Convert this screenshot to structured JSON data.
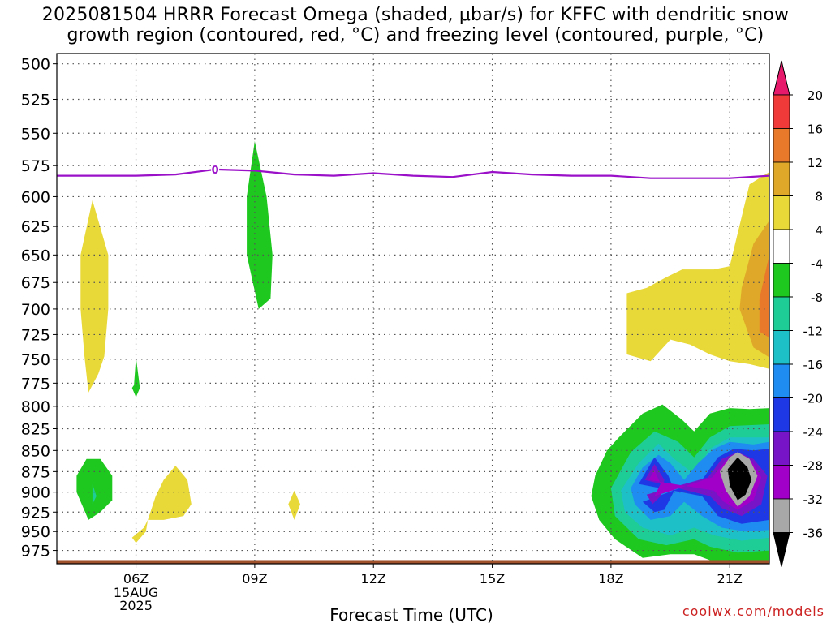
{
  "title": {
    "line1": "2025081504 HRRR Forecast Omega (shaded, μbar/s) for KFFC with dendritic snow",
    "line2": "growth region (contoured, red, °C) and freezing level (contoured, purple, °C)"
  },
  "watermark": "coolwx.com/models",
  "chart_data": {
    "type": "heatmap",
    "xlabel": "Forecast Time (UTC)",
    "x_tick_labels": [
      "06Z",
      "09Z",
      "12Z",
      "15Z",
      "18Z",
      "21Z"
    ],
    "x_tick_hours": [
      6,
      9,
      12,
      15,
      18,
      21
    ],
    "x_date_label": [
      "15AUG",
      "2025"
    ],
    "xlim_hours": [
      4.0,
      22.0
    ],
    "y_tick_labels": [
      "500",
      "525",
      "550",
      "575",
      "600",
      "625",
      "650",
      "675",
      "700",
      "725",
      "750",
      "775",
      "800",
      "825",
      "850",
      "875",
      "900",
      "925",
      "950",
      "975"
    ],
    "ylim_mb": [
      493,
      993
    ],
    "y_scale": "log-pressure",
    "grid": true,
    "colorbar": {
      "labels": [
        "20",
        "16",
        "12",
        "8",
        "4",
        "-4",
        "-8",
        "-12",
        "-16",
        "-20",
        "-24",
        "-28",
        "-32",
        "-36"
      ],
      "colors": [
        "#e6196b",
        "#f03a3a",
        "#e8782a",
        "#e0a828",
        "#e8d838",
        "#ffffff",
        "#1ec81e",
        "#1ecc96",
        "#1ec0c8",
        "#1e8cf0",
        "#1e38e6",
        "#7814c8",
        "#a000c8",
        "#a8a8a8",
        "#000000"
      ]
    },
    "freezing_level": {
      "label": "0",
      "label_hour": 8.0,
      "color": "#9a10c8",
      "hours": [
        4.0,
        6.0,
        7.0,
        8.0,
        9.0,
        10.0,
        11.0,
        12.0,
        13.0,
        14.0,
        15.0,
        16.0,
        17.0,
        18.0,
        19.0,
        20.0,
        21.0,
        22.0
      ],
      "pressure_mb": [
        583,
        583,
        582,
        578,
        579,
        582,
        583,
        581,
        583,
        584,
        580,
        582,
        583,
        583,
        585,
        585,
        585,
        583
      ]
    },
    "omega_regions": [
      {
        "level": "4",
        "color": "#e8d838",
        "hours": [
          4.6,
          4.9,
          5.3,
          5.3,
          5.2,
          5.05,
          4.8,
          4.7,
          4.6
        ],
        "pressure_mb": [
          650,
          603,
          650,
          700,
          747,
          765,
          785,
          747,
          700
        ]
      },
      {
        "level": "-4",
        "color": "#1ec81e",
        "hours": [
          5.95,
          6.0,
          6.1,
          6.0,
          5.9
        ],
        "pressure_mb": [
          777,
          748,
          780,
          790,
          780
        ]
      },
      {
        "level": "-4",
        "color": "#1ec81e",
        "hours": [
          8.8,
          9.0,
          9.3,
          9.45,
          9.4,
          9.1,
          8.8
        ],
        "pressure_mb": [
          600,
          556,
          600,
          650,
          690,
          700,
          650
        ]
      },
      {
        "level": "4",
        "color": "#e8d838",
        "hours": [
          9.85,
          10.0,
          10.15,
          10.0
        ],
        "pressure_mb": [
          915,
          898,
          915,
          935
        ]
      },
      {
        "level": "-4",
        "color": "#1ec81e",
        "hours": [
          4.5,
          4.75,
          5.1,
          5.4,
          5.4,
          5.1,
          4.8,
          4.5
        ],
        "pressure_mb": [
          880,
          860,
          860,
          880,
          910,
          925,
          935,
          900
        ]
      },
      {
        "level": "-8",
        "color": "#1ecc96",
        "hours": [
          4.9,
          5.0,
          4.9
        ],
        "pressure_mb": [
          890,
          905,
          915
        ]
      },
      {
        "level": "4",
        "color": "#e8d838",
        "hours": [
          5.9,
          6.2,
          6.3,
          6.5,
          6.7,
          7.0,
          7.3,
          7.4,
          7.2,
          6.7,
          6.3,
          6.25,
          6.0
        ],
        "pressure_mb": [
          958,
          945,
          935,
          905,
          885,
          868,
          885,
          915,
          930,
          935,
          935,
          950,
          965
        ]
      },
      {
        "level": "4",
        "color": "#e8d838",
        "hours": [
          18.4,
          18.9,
          19.4,
          19.8,
          20.6,
          21.0,
          21.5,
          22.0,
          22.0,
          21.5,
          21.0,
          20.5,
          20.0,
          19.5,
          19.0,
          18.4
        ],
        "pressure_mb": [
          685,
          680,
          670,
          663,
          663,
          660,
          590,
          580,
          760,
          755,
          752,
          745,
          735,
          730,
          752,
          745
        ]
      },
      {
        "level": "8",
        "color": "#e0a828",
        "hours": [
          21.3,
          21.6,
          22.0,
          22.0,
          21.6,
          21.25
        ],
        "pressure_mb": [
          680,
          640,
          620,
          748,
          738,
          700
        ]
      },
      {
        "level": "12",
        "color": "#e8782a",
        "hours": [
          21.75,
          22.0,
          22.0,
          21.75
        ],
        "pressure_mb": [
          690,
          650,
          728,
          722
        ]
      },
      {
        "level": "-4",
        "color": "#1ec81e",
        "hours": [
          17.6,
          17.9,
          18.2,
          18.8,
          19.3,
          19.8,
          20.1,
          20.5,
          21.0,
          21.5,
          22.0,
          22.0,
          21.4,
          20.5,
          20.1,
          19.5,
          18.8,
          18.1,
          17.7,
          17.5
        ],
        "pressure_mb": [
          880,
          850,
          835,
          808,
          798,
          815,
          828,
          808,
          802,
          803,
          802,
          990,
          990,
          988,
          980,
          980,
          985,
          960,
          935,
          905
        ]
      },
      {
        "level": "-8",
        "color": "#1ecc96",
        "hours": [
          18.0,
          18.5,
          19.1,
          19.7,
          20.1,
          20.5,
          21.0,
          22.0,
          22.0,
          21.2,
          20.5,
          20.1,
          19.4,
          18.7,
          18.1
        ],
        "pressure_mb": [
          895,
          852,
          828,
          840,
          858,
          835,
          822,
          820,
          975,
          978,
          970,
          960,
          968,
          960,
          930
        ]
      },
      {
        "level": "-12",
        "color": "#1ec0c8",
        "hours": [
          18.25,
          18.7,
          19.2,
          19.6,
          20.1,
          20.5,
          21.0,
          22.0,
          22.0,
          21.3,
          20.6,
          20.1,
          19.5,
          18.8,
          18.35
        ],
        "pressure_mb": [
          898,
          865,
          842,
          860,
          878,
          848,
          835,
          835,
          958,
          962,
          955,
          945,
          955,
          945,
          925
        ]
      },
      {
        "level": "-16",
        "color": "#1e8cf0",
        "hours": [
          18.5,
          18.8,
          19.2,
          19.5,
          19.85,
          20.2,
          20.6,
          21.0,
          21.6,
          22.0,
          22.0,
          21.4,
          20.8,
          20.3,
          19.85,
          19.5,
          19.0,
          18.6
        ],
        "pressure_mb": [
          895,
          870,
          855,
          865,
          885,
          865,
          848,
          840,
          843,
          840,
          948,
          950,
          945,
          930,
          912,
          930,
          935,
          915
        ]
      },
      {
        "level": "-20",
        "color": "#1e38e6",
        "hours": [
          18.7,
          19.1,
          19.45,
          19.6,
          19.35,
          19.1,
          18.8,
          20.3,
          20.7,
          21.1,
          21.6,
          22.0,
          22.0,
          21.3,
          20.7,
          20.3
        ],
        "pressure_mb": [
          890,
          858,
          880,
          898,
          922,
          925,
          912,
          885,
          858,
          848,
          850,
          848,
          935,
          940,
          930,
          905
        ]
      },
      {
        "level": "-24",
        "color": "#7814c8",
        "hours": [
          18.85,
          19.1,
          19.35,
          19.25,
          19.05,
          18.9,
          20.45,
          20.8,
          21.2,
          21.6,
          21.95,
          21.8,
          21.3,
          20.8,
          20.5
        ],
        "pressure_mb": [
          885,
          866,
          885,
          905,
          915,
          903,
          882,
          860,
          852,
          860,
          880,
          915,
          930,
          920,
          905
        ]
      },
      {
        "level": "-28",
        "color": "#a000c8",
        "hours": [
          18.95,
          19.1,
          19.25,
          19.1,
          20.55,
          20.9,
          21.2,
          21.55,
          21.8,
          21.6,
          21.2,
          20.85,
          20.6
        ],
        "pressure_mb": [
          885,
          873,
          890,
          905,
          882,
          862,
          855,
          862,
          882,
          910,
          922,
          912,
          898
        ]
      },
      {
        "level": "-32",
        "color": "#a8a8a8",
        "hours": [
          20.75,
          21.0,
          21.2,
          21.5,
          21.7,
          21.5,
          21.2,
          20.9
        ],
        "pressure_mb": [
          875,
          858,
          852,
          860,
          880,
          905,
          918,
          898
        ]
      },
      {
        "level": "-36",
        "color": "#000000",
        "hours": [
          20.95,
          21.2,
          21.45,
          21.55,
          21.4,
          21.2,
          21.0
        ],
        "pressure_mb": [
          872,
          858,
          870,
          885,
          903,
          910,
          892
        ]
      }
    ],
    "terrain": {
      "color": "#a0522d",
      "hours": [
        4.0,
        22.0
      ],
      "pressure_mb": [
        988,
        988
      ]
    }
  }
}
